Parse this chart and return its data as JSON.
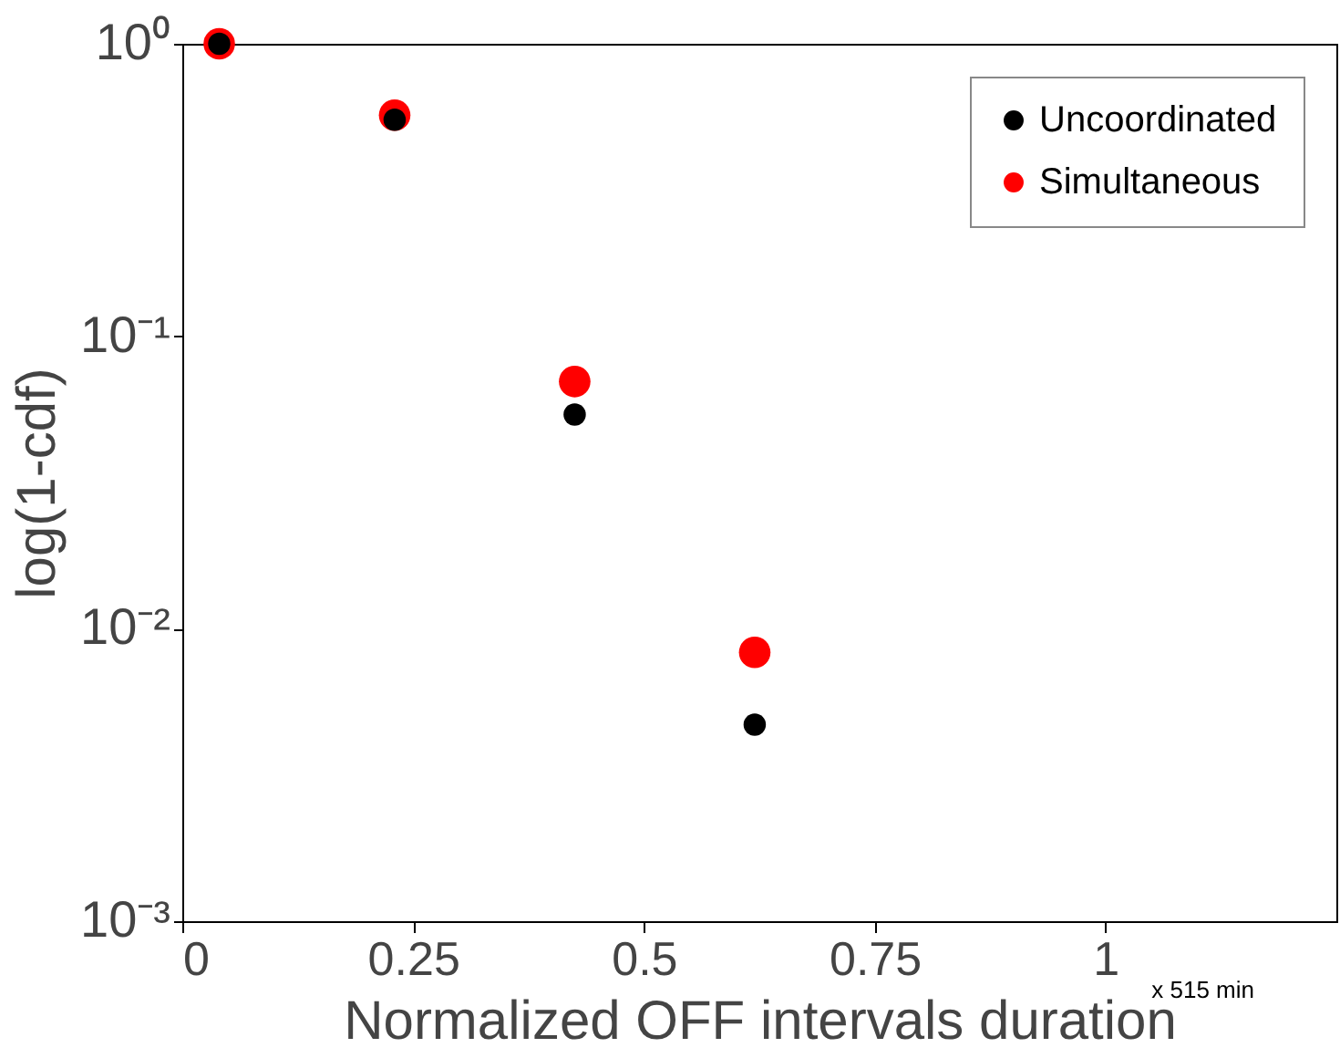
{
  "chart_data": {
    "type": "scatter",
    "xlabel": "Normalized OFF intervals duration",
    "ylabel": "log(1-cdf)",
    "log": "y",
    "xlim": [
      0,
      1.25
    ],
    "xticks": [
      0,
      0.25,
      0.5,
      0.75,
      1
    ],
    "ylim": [
      0.001,
      1
    ],
    "yticks": [
      {
        "value": 0.001,
        "label": "10⁻³"
      },
      {
        "value": 0.01,
        "label": "10⁻²"
      },
      {
        "value": 0.1,
        "label": "10⁻¹"
      },
      {
        "value": 1,
        "label": "10⁰"
      }
    ],
    "marker": "circle",
    "grid": false,
    "legend": "top right",
    "annotations": [
      {
        "text": "x 515 min"
      }
    ],
    "series": [
      {
        "name": "Uncoordinated",
        "color": "#000000",
        "x": [
          0.04,
          0.23,
          0.425,
          0.62
        ],
        "values": [
          1,
          0.55,
          0.054,
          0.0047
        ]
      },
      {
        "name": "Simultaneous",
        "color": "#ff0000",
        "x": [
          0.04,
          0.23,
          0.425,
          0.62
        ],
        "values": [
          1,
          0.57,
          0.07,
          0.0083
        ]
      }
    ]
  }
}
